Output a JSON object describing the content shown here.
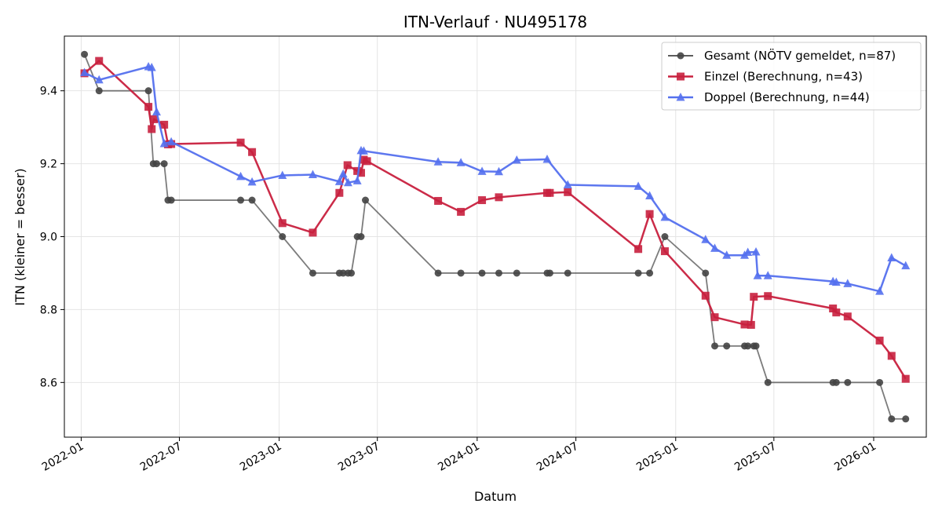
{
  "chart_data": {
    "type": "line",
    "title": "ITN-Verlauf · NU495178",
    "xlabel": "Datum",
    "ylabel": "ITN  (kleiner = besser)",
    "x_ticks": [
      "2022-01",
      "2022-07",
      "2023-01",
      "2023-07",
      "2024-01",
      "2024-07",
      "2025-01",
      "2025-07",
      "2026-01"
    ],
    "y_ticks": [
      "8.6",
      "8.8",
      "9.0",
      "9.2",
      "9.4"
    ],
    "xlim": [
      "2021-12-01",
      "2026-04-08"
    ],
    "ylim": [
      8.45,
      9.55
    ],
    "grid": true,
    "legend_position": "top-right",
    "series": [
      {
        "name": "Gesamt (NÖTV gemeldet, n=87)",
        "color": "#444444",
        "marker": "circle",
        "points": [
          [
            "2022-01-07",
            9.5
          ],
          [
            "2022-02-03",
            9.4
          ],
          [
            "2022-05-05",
            9.4
          ],
          [
            "2022-05-14",
            9.2
          ],
          [
            "2022-05-20",
            9.2
          ],
          [
            "2022-06-03",
            9.2
          ],
          [
            "2022-06-10",
            9.1
          ],
          [
            "2022-06-16",
            9.1
          ],
          [
            "2022-10-22",
            9.1
          ],
          [
            "2022-11-12",
            9.1
          ],
          [
            "2023-01-07",
            9.0
          ],
          [
            "2023-03-04",
            8.9
          ],
          [
            "2023-04-22",
            8.9
          ],
          [
            "2023-04-29",
            8.9
          ],
          [
            "2023-05-08",
            8.9
          ],
          [
            "2023-05-14",
            8.9
          ],
          [
            "2023-05-25",
            9.0
          ],
          [
            "2023-06-01",
            9.0
          ],
          [
            "2023-06-09",
            9.1
          ],
          [
            "2023-10-21",
            8.9
          ],
          [
            "2023-12-02",
            8.9
          ],
          [
            "2024-01-10",
            8.9
          ],
          [
            "2024-02-10",
            8.9
          ],
          [
            "2024-03-14",
            8.9
          ],
          [
            "2024-05-09",
            8.9
          ],
          [
            "2024-05-14",
            8.9
          ],
          [
            "2024-06-16",
            8.9
          ],
          [
            "2024-10-24",
            8.9
          ],
          [
            "2024-11-14",
            8.9
          ],
          [
            "2024-12-12",
            9.0
          ],
          [
            "2025-02-25",
            8.9
          ],
          [
            "2025-03-14",
            8.7
          ],
          [
            "2025-04-05",
            8.7
          ],
          [
            "2025-05-08",
            8.7
          ],
          [
            "2025-05-14",
            8.7
          ],
          [
            "2025-05-25",
            8.7
          ],
          [
            "2025-05-29",
            8.7
          ],
          [
            "2025-06-20",
            8.6
          ],
          [
            "2025-10-18",
            8.6
          ],
          [
            "2025-10-24",
            8.6
          ],
          [
            "2025-11-14",
            8.6
          ],
          [
            "2026-01-12",
            8.6
          ],
          [
            "2026-02-03",
            8.5
          ],
          [
            "2026-03-01",
            8.5
          ]
        ]
      },
      {
        "name": "Einzel (Berechnung, n=43)",
        "color": "#c8203e",
        "marker": "square",
        "points": [
          [
            "2022-01-07",
            9.448
          ],
          [
            "2022-02-03",
            9.482
          ],
          [
            "2022-05-05",
            9.356
          ],
          [
            "2022-05-11",
            9.295
          ],
          [
            "2022-05-15",
            9.322
          ],
          [
            "2022-06-03",
            9.307
          ],
          [
            "2022-06-10",
            9.253
          ],
          [
            "2022-06-16",
            9.254
          ],
          [
            "2022-10-22",
            9.258
          ],
          [
            "2022-11-12",
            9.232
          ],
          [
            "2023-01-07",
            9.037
          ],
          [
            "2023-03-04",
            9.011
          ],
          [
            "2023-04-22",
            9.12
          ],
          [
            "2023-05-07",
            9.196
          ],
          [
            "2023-05-25",
            9.18
          ],
          [
            "2023-06-01",
            9.175
          ],
          [
            "2023-06-06",
            9.211
          ],
          [
            "2023-06-12",
            9.207
          ],
          [
            "2023-10-21",
            9.098
          ],
          [
            "2023-12-02",
            9.068
          ],
          [
            "2024-01-10",
            9.1
          ],
          [
            "2024-02-10",
            9.108
          ],
          [
            "2024-05-09",
            9.12
          ],
          [
            "2024-05-14",
            9.12
          ],
          [
            "2024-06-16",
            9.122
          ],
          [
            "2024-10-24",
            8.966
          ],
          [
            "2024-11-14",
            9.062
          ],
          [
            "2024-12-12",
            8.96
          ],
          [
            "2025-02-25",
            8.838
          ],
          [
            "2025-03-14",
            8.779
          ],
          [
            "2025-05-08",
            8.759
          ],
          [
            "2025-05-20",
            8.758
          ],
          [
            "2025-05-25",
            8.835
          ],
          [
            "2025-06-20",
            8.837
          ],
          [
            "2025-10-18",
            8.803
          ],
          [
            "2025-10-24",
            8.792
          ],
          [
            "2025-11-14",
            8.781
          ],
          [
            "2026-01-12",
            8.715
          ],
          [
            "2026-02-03",
            8.673
          ],
          [
            "2026-03-01",
            8.61
          ]
        ]
      },
      {
        "name": "Doppel (Berechnung, n=44)",
        "color": "#5470ee",
        "marker": "triangle",
        "points": [
          [
            "2022-01-07",
            9.45
          ],
          [
            "2022-02-03",
            9.43
          ],
          [
            "2022-05-05",
            9.466
          ],
          [
            "2022-05-11",
            9.464
          ],
          [
            "2022-05-20",
            9.342
          ],
          [
            "2022-06-03",
            9.255
          ],
          [
            "2022-06-16",
            9.26
          ],
          [
            "2022-10-22",
            9.165
          ],
          [
            "2022-11-12",
            9.15
          ],
          [
            "2023-01-07",
            9.168
          ],
          [
            "2023-03-04",
            9.17
          ],
          [
            "2023-04-22",
            9.151
          ],
          [
            "2023-04-29",
            9.172
          ],
          [
            "2023-05-08",
            9.148
          ],
          [
            "2023-05-25",
            9.153
          ],
          [
            "2023-06-01",
            9.236
          ],
          [
            "2023-06-06",
            9.235
          ],
          [
            "2023-10-21",
            9.205
          ],
          [
            "2023-12-02",
            9.203
          ],
          [
            "2024-01-10",
            9.179
          ],
          [
            "2024-02-10",
            9.178
          ],
          [
            "2024-03-14",
            9.21
          ],
          [
            "2024-05-09",
            9.212
          ],
          [
            "2024-06-16",
            9.142
          ],
          [
            "2024-10-24",
            9.138
          ],
          [
            "2024-11-14",
            9.112
          ],
          [
            "2024-12-12",
            9.053
          ],
          [
            "2025-02-25",
            8.992
          ],
          [
            "2025-03-14",
            8.968
          ],
          [
            "2025-04-05",
            8.949
          ],
          [
            "2025-05-08",
            8.949
          ],
          [
            "2025-05-14",
            8.957
          ],
          [
            "2025-05-29",
            8.958
          ],
          [
            "2025-06-01",
            8.893
          ],
          [
            "2025-06-20",
            8.893
          ],
          [
            "2025-10-18",
            8.877
          ],
          [
            "2025-10-24",
            8.875
          ],
          [
            "2025-11-14",
            8.871
          ],
          [
            "2026-01-12",
            8.85
          ],
          [
            "2026-02-03",
            8.942
          ],
          [
            "2026-03-01",
            8.92
          ]
        ]
      }
    ]
  }
}
